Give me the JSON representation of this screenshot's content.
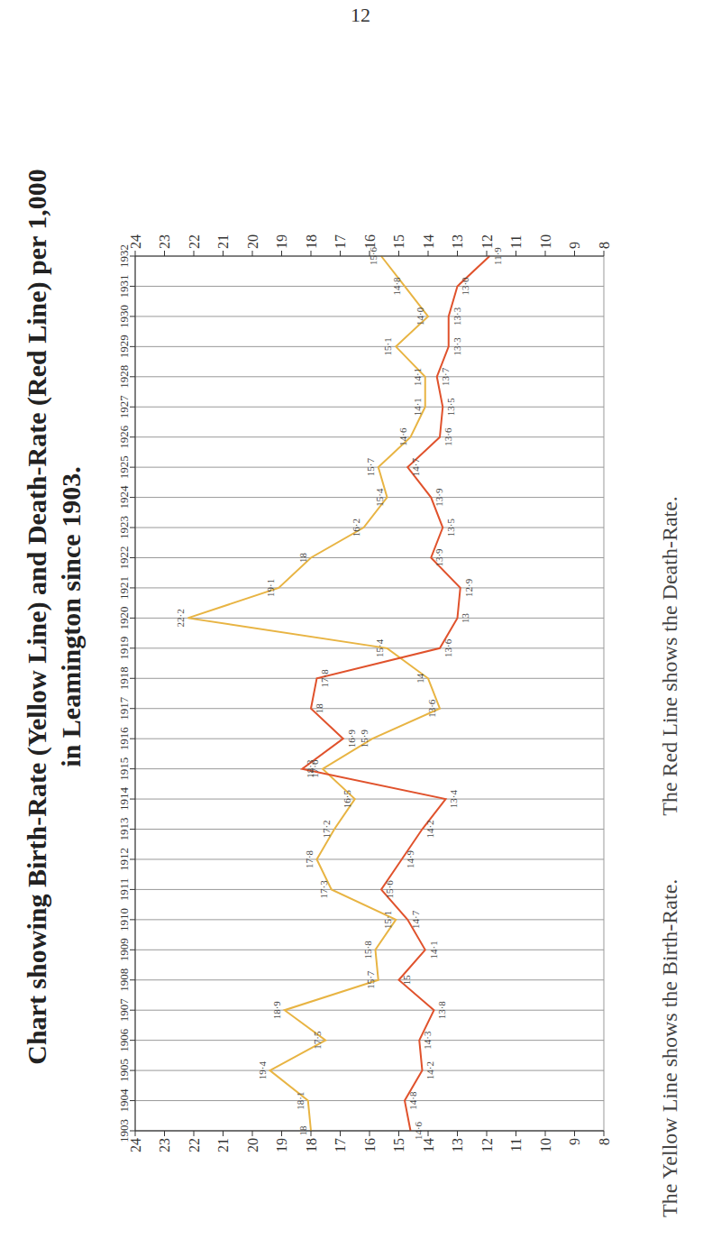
{
  "page": "12",
  "footer": [
    "The Yellow Line shows the Birth-Rate.",
    "The Red Line shows the Death-Rate."
  ],
  "chart_data": {
    "type": "line",
    "title": [
      "Chart showing Birth-Rate (Yellow Line) and Death-Rate (Red Line) per 1,000",
      "in Leamington since 1903."
    ],
    "categories": [
      "1903",
      "1904",
      "1905",
      "1906",
      "1907",
      "1908",
      "1909",
      "1910",
      "1911",
      "1912",
      "1913",
      "1914",
      "1915",
      "1916",
      "1917",
      "1918",
      "1919",
      "1920",
      "1921",
      "1922",
      "1923",
      "1924",
      "1925",
      "1926",
      "1927",
      "1928",
      "1929",
      "1930",
      "1931",
      "1932"
    ],
    "series": [
      {
        "name": "Birth-Rate",
        "color": "#e8b443",
        "values": [
          18,
          18.1,
          19.4,
          17.5,
          18.9,
          15.7,
          15.8,
          15.1,
          17.3,
          17.8,
          17.2,
          16.5,
          17.6,
          15.9,
          13.6,
          14,
          15.4,
          22.2,
          19.1,
          18,
          16.2,
          15.4,
          15.7,
          14.6,
          14.1,
          14.1,
          15.1,
          14,
          14.8,
          15.6
        ],
        "value_labels": [
          "18",
          "18·1",
          "19·4",
          "17·5",
          "18·9",
          "15·7",
          "15·8",
          "15·1",
          "17·3",
          "17·8",
          "17·2",
          "16·5",
          "17·6",
          "15·9",
          "13·6",
          "14",
          "15·4",
          "22·2",
          "19·1",
          "18",
          "16·2",
          "15·4",
          "15·7",
          "14·6",
          "14·1",
          "14·1",
          "15·1",
          "14·0",
          "14·8",
          "15·6"
        ]
      },
      {
        "name": "Death-Rate",
        "color": "#e0522c",
        "values": [
          14.6,
          14.8,
          14.2,
          14.3,
          13.8,
          15,
          14.1,
          14.7,
          15.6,
          14.9,
          14.2,
          13.4,
          18.3,
          16.9,
          18,
          17.8,
          13.6,
          13,
          12.9,
          13.9,
          13.5,
          13.9,
          14.7,
          13.6,
          13.5,
          13.7,
          13.3,
          13.3,
          13,
          11.9
        ],
        "value_labels": [
          "14·6",
          "14·8",
          "14·2",
          "14·3",
          "13·8",
          "15",
          "14·1",
          "14·7",
          "15·6",
          "14·9",
          "14·2",
          "13·4",
          "18·3",
          "16·9",
          "18",
          "17·8",
          "13·6",
          "13",
          "12·9",
          "13·9",
          "13·5",
          "13·9",
          "14·7",
          "13·6",
          "13·5",
          "13·7",
          "13·3",
          "13·3",
          "13·0",
          "11·9"
        ]
      }
    ],
    "ylim": [
      8,
      24
    ],
    "yticks": [
      8,
      9,
      10,
      11,
      12,
      13,
      14,
      15,
      16,
      17,
      18,
      19,
      20,
      21,
      22,
      23,
      24
    ],
    "grid": true,
    "data_labels": true
  }
}
